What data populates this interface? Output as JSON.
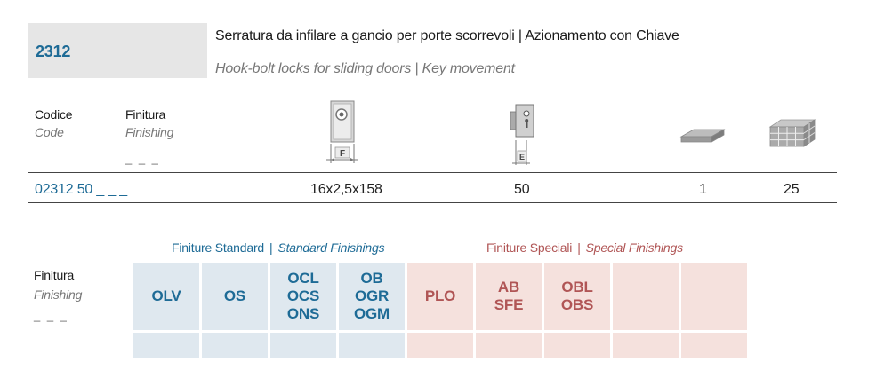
{
  "header": {
    "code": "2312",
    "title_it": "Serratura da infilare a gancio per porte scorrevoli | Azionamento con Chiave",
    "title_en": "Hook-bolt locks for sliding doors | Key movement"
  },
  "table": {
    "col_code_it": "Codice",
    "col_code_en": "Code",
    "col_finish_it": "Finitura",
    "col_finish_en": "Finishing",
    "finish_placeholder": "_ _ _",
    "icons": {
      "faceplate": {
        "name": "faceplate-icon",
        "label": "F"
      },
      "backset": {
        "name": "backset-icon",
        "label": "E"
      },
      "single_pack": {
        "name": "single-pack-icon"
      },
      "box_pack": {
        "name": "box-pack-icon"
      }
    },
    "row": {
      "code": "02312 50 _ _ _",
      "faceplate": "16x2,5x158",
      "backset": "50",
      "qty_single": "1",
      "qty_box": "25"
    }
  },
  "finishes": {
    "label_it": "Finitura",
    "label_en": "Finishing",
    "placeholder": "_ _ _",
    "standard_it": "Finiture Standard",
    "standard_en": "Standard Finishings",
    "special_it": "Finiture Speciali",
    "special_en": "Special Finishings",
    "separator": "|",
    "standard": [
      {
        "lines": [
          "OLV"
        ]
      },
      {
        "lines": [
          "OS"
        ]
      },
      {
        "lines": [
          "OCL",
          "OCS",
          "ONS"
        ]
      },
      {
        "lines": [
          "OB",
          "OGR",
          "OGM"
        ]
      }
    ],
    "special": [
      {
        "lines": [
          "PLO"
        ]
      },
      {
        "lines": [
          "AB",
          "SFE"
        ]
      },
      {
        "lines": [
          "OBL",
          "OBS"
        ]
      },
      {
        "lines": []
      },
      {
        "lines": []
      }
    ],
    "colors": {
      "standard_bg": "#dfe8ef",
      "standard_fg": "#1e6b96",
      "special_bg": "#f5e1dd",
      "special_fg": "#b05555"
    }
  }
}
